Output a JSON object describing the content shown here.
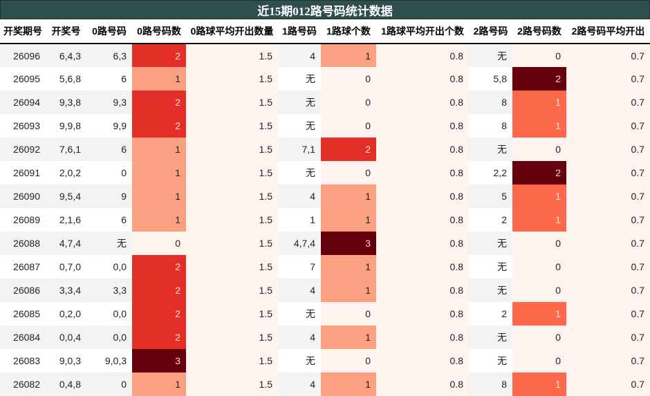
{
  "title": "近15期012路号码统计数据",
  "columns": [
    "开奖期号",
    "开奖号",
    "0路号码",
    "0路号码数",
    "0路球平均开出数量",
    "1路号码",
    "1路球个数",
    "1路球平均开出个数",
    "2路号码",
    "2路号码数",
    "2路号码平均开出"
  ],
  "colors": {
    "title_bg": "#2f4f4f",
    "heat_0": "#fef3ef",
    "heat_1_col4": "#fca082",
    "heat_2_col4": "#e32f27",
    "heat_3_col4": "#67000d",
    "heat_1_col7": "#fca082",
    "heat_2_col7": "#e32f27",
    "heat_3_col7": "#67000d",
    "heat_1_col10": "#fc694a",
    "heat_2_col10": "#67000d"
  },
  "rows": [
    {
      "issue": "26096",
      "draw": "6,4,3",
      "r0": "6,3",
      "r0n": "2",
      "r0avg": "1.5",
      "r1": "4",
      "r1n": "1",
      "r1avg": "0.8",
      "r2": "无",
      "r2n": "0",
      "r2avg": "0.7"
    },
    {
      "issue": "26095",
      "draw": "5,6,8",
      "r0": "6",
      "r0n": "1",
      "r0avg": "1.5",
      "r1": "无",
      "r1n": "0",
      "r1avg": "0.8",
      "r2": "5,8",
      "r2n": "2",
      "r2avg": "0.7"
    },
    {
      "issue": "26094",
      "draw": "9,3,8",
      "r0": "9,3",
      "r0n": "2",
      "r0avg": "1.5",
      "r1": "无",
      "r1n": "0",
      "r1avg": "0.8",
      "r2": "8",
      "r2n": "1",
      "r2avg": "0.7"
    },
    {
      "issue": "26093",
      "draw": "9,9,8",
      "r0": "9,9",
      "r0n": "2",
      "r0avg": "1.5",
      "r1": "无",
      "r1n": "0",
      "r1avg": "0.8",
      "r2": "8",
      "r2n": "1",
      "r2avg": "0.7"
    },
    {
      "issue": "26092",
      "draw": "7,6,1",
      "r0": "6",
      "r0n": "1",
      "r0avg": "1.5",
      "r1": "7,1",
      "r1n": "2",
      "r1avg": "0.8",
      "r2": "无",
      "r2n": "0",
      "r2avg": "0.7"
    },
    {
      "issue": "26091",
      "draw": "2,0,2",
      "r0": "0",
      "r0n": "1",
      "r0avg": "1.5",
      "r1": "无",
      "r1n": "0",
      "r1avg": "0.8",
      "r2": "2,2",
      "r2n": "2",
      "r2avg": "0.7"
    },
    {
      "issue": "26090",
      "draw": "9,5,4",
      "r0": "9",
      "r0n": "1",
      "r0avg": "1.5",
      "r1": "4",
      "r1n": "1",
      "r1avg": "0.8",
      "r2": "5",
      "r2n": "1",
      "r2avg": "0.7"
    },
    {
      "issue": "26089",
      "draw": "2,1,6",
      "r0": "6",
      "r0n": "1",
      "r0avg": "1.5",
      "r1": "1",
      "r1n": "1",
      "r1avg": "0.8",
      "r2": "2",
      "r2n": "1",
      "r2avg": "0.7"
    },
    {
      "issue": "26088",
      "draw": "4,7,4",
      "r0": "无",
      "r0n": "0",
      "r0avg": "1.5",
      "r1": "4,7,4",
      "r1n": "3",
      "r1avg": "0.8",
      "r2": "无",
      "r2n": "0",
      "r2avg": "0.7"
    },
    {
      "issue": "26087",
      "draw": "0,7,0",
      "r0": "0,0",
      "r0n": "2",
      "r0avg": "1.5",
      "r1": "7",
      "r1n": "1",
      "r1avg": "0.8",
      "r2": "无",
      "r2n": "0",
      "r2avg": "0.7"
    },
    {
      "issue": "26086",
      "draw": "3,3,4",
      "r0": "3,3",
      "r0n": "2",
      "r0avg": "1.5",
      "r1": "4",
      "r1n": "1",
      "r1avg": "0.8",
      "r2": "无",
      "r2n": "0",
      "r2avg": "0.7"
    },
    {
      "issue": "26085",
      "draw": "0,2,0",
      "r0": "0,0",
      "r0n": "2",
      "r0avg": "1.5",
      "r1": "无",
      "r1n": "0",
      "r1avg": "0.8",
      "r2": "2",
      "r2n": "1",
      "r2avg": "0.7"
    },
    {
      "issue": "26084",
      "draw": "0,0,4",
      "r0": "0,0",
      "r0n": "2",
      "r0avg": "1.5",
      "r1": "4",
      "r1n": "1",
      "r1avg": "0.8",
      "r2": "无",
      "r2n": "0",
      "r2avg": "0.7"
    },
    {
      "issue": "26083",
      "draw": "9,0,3",
      "r0": "9,0,3",
      "r0n": "3",
      "r0avg": "1.5",
      "r1": "无",
      "r1n": "0",
      "r1avg": "0.8",
      "r2": "无",
      "r2n": "0",
      "r2avg": "0.7"
    },
    {
      "issue": "26082",
      "draw": "0,4,8",
      "r0": "0",
      "r0n": "1",
      "r0avg": "1.5",
      "r1": "4",
      "r1n": "1",
      "r1avg": "0.8",
      "r2": "8",
      "r2n": "1",
      "r2avg": "0.7"
    }
  ]
}
